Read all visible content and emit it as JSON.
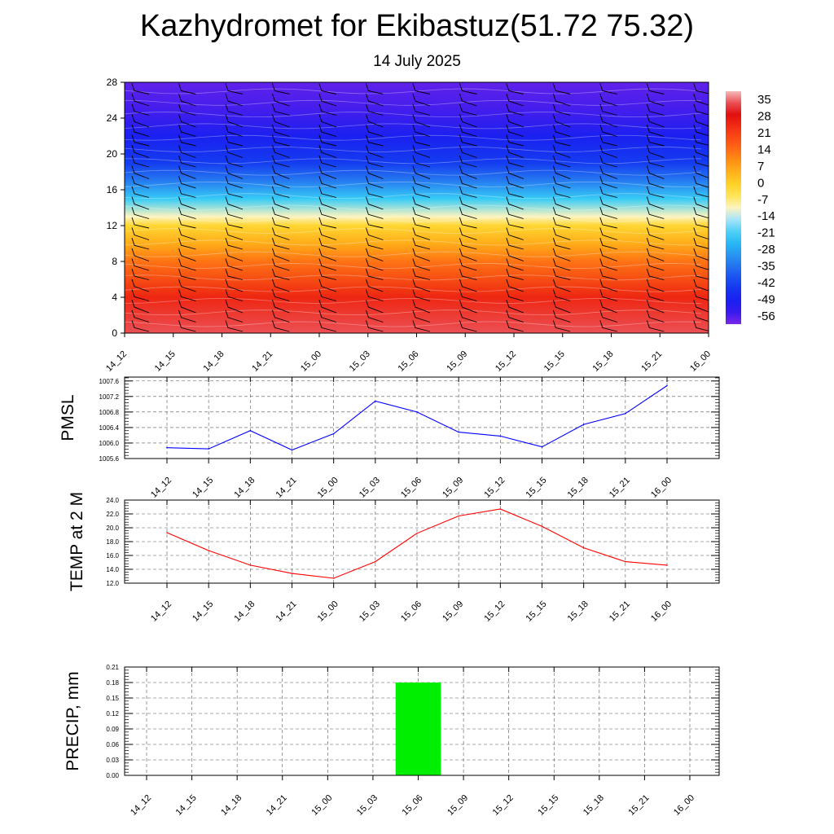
{
  "title": "Kazhydromet for Ekibastuz(51.72 75.32)",
  "subtitle": "14 July 2025",
  "chart_data": [
    {
      "type": "heatmap",
      "x_ticks": [
        "14_12",
        "14_15",
        "14_18",
        "14_21",
        "15_00",
        "15_03",
        "15_06",
        "15_09",
        "15_12",
        "15_15",
        "15_18",
        "15_21",
        "16_00"
      ],
      "y_ticks": [
        0,
        4,
        8,
        12,
        16,
        20,
        24,
        28
      ],
      "ylim": [
        0,
        28
      ],
      "colorbar_labels": [
        "35",
        "28",
        "21",
        "14",
        "7",
        "0",
        "-7",
        "-14",
        "-21",
        "-28",
        "-35",
        "-42",
        "-49",
        "-56"
      ],
      "colorbar_range": [
        -62,
        38
      ],
      "grid": false,
      "overlay": "wind barbs",
      "temperature_profile": [
        {
          "level": 0,
          "value": 33
        },
        {
          "level": 4,
          "value": 24
        },
        {
          "level": 8,
          "value": 12
        },
        {
          "level": 10,
          "value": 4
        },
        {
          "level": 12,
          "value": -3
        },
        {
          "level": 13,
          "value": -12
        },
        {
          "level": 15,
          "value": -24
        },
        {
          "level": 17,
          "value": -36
        },
        {
          "level": 19,
          "value": -45
        },
        {
          "level": 22,
          "value": -52
        },
        {
          "level": 25,
          "value": -58
        },
        {
          "level": 28,
          "value": -60
        }
      ]
    },
    {
      "type": "line",
      "ylabel": "PMSL",
      "x": [
        "14_12",
        "14_15",
        "14_18",
        "14_21",
        "15_00",
        "15_03",
        "15_06",
        "15_09",
        "15_12",
        "15_15",
        "15_18",
        "15_21",
        "16_00"
      ],
      "series": [
        {
          "values": [
            1005.88,
            1005.85,
            1006.32,
            1005.82,
            1006.24,
            1007.08,
            1006.8,
            1006.28,
            1006.18,
            1005.9,
            1006.48,
            1006.76,
            1007.48
          ]
        }
      ],
      "y_ticks": [
        "1005.6",
        "1006.0",
        "1006.4",
        "1006.8",
        "1007.2",
        "1007.6"
      ],
      "ylim": [
        1005.6,
        1007.7
      ],
      "color": "#0000ff",
      "grid": true
    },
    {
      "type": "line",
      "ylabel": "TEMP at 2 M",
      "x": [
        "14_12",
        "14_15",
        "14_18",
        "14_21",
        "15_00",
        "15_03",
        "15_06",
        "15_09",
        "15_12",
        "15_15",
        "15_18",
        "15_21",
        "16_00"
      ],
      "series": [
        {
          "values": [
            19.3,
            16.7,
            14.6,
            13.4,
            12.7,
            15.1,
            19.2,
            21.7,
            22.7,
            20.2,
            17.1,
            15.1,
            14.6
          ]
        }
      ],
      "y_ticks": [
        "12.0",
        "14.0",
        "16.0",
        "18.0",
        "20.0",
        "22.0",
        "24.0"
      ],
      "ylim": [
        12,
        24
      ],
      "color": "#ff0000",
      "grid": true
    },
    {
      "type": "bar",
      "ylabel": "PRECIP, mm",
      "categories": [
        "14_12",
        "14_15",
        "14_18",
        "14_21",
        "15_00",
        "15_03",
        "15_06",
        "15_09",
        "15_12",
        "15_15",
        "15_18",
        "15_21",
        "16_00"
      ],
      "values": [
        0,
        0,
        0,
        0,
        0,
        0,
        0.18,
        0,
        0,
        0,
        0,
        0,
        0
      ],
      "y_ticks": [
        "0.00",
        "0.03",
        "0.06",
        "0.09",
        "0.12",
        "0.15",
        "0.18",
        "0.21"
      ],
      "ylim": [
        0,
        0.21
      ],
      "color": "#00ee00",
      "grid": true
    }
  ]
}
